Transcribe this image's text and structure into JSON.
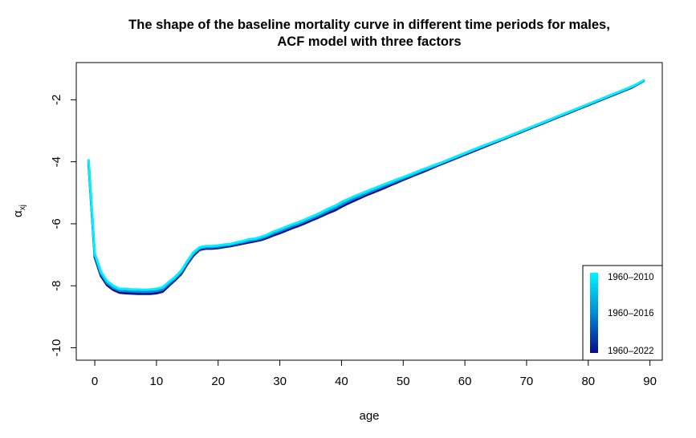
{
  "chart_data": {
    "type": "line",
    "title_line1": "The shape of the baseline mortality curve in different time periods for males,",
    "title_line2": "ACF model with three factors",
    "xlabel": "age",
    "ylabel": "α",
    "ylabel_sub": "xj",
    "xlim": [
      -3,
      92
    ],
    "ylim": [
      -10.4,
      -0.8
    ],
    "xticks": [
      0,
      10,
      20,
      30,
      40,
      50,
      60,
      70,
      80,
      90
    ],
    "yticks": [
      -10,
      -8,
      -6,
      -4,
      -2
    ],
    "x": [
      -1,
      0,
      1,
      2,
      3,
      4,
      5,
      6,
      7,
      8,
      9,
      10,
      11,
      12,
      13,
      14,
      15,
      16,
      17,
      18,
      19,
      20,
      21,
      22,
      23,
      24,
      25,
      26,
      27,
      28,
      29,
      30,
      31,
      32,
      33,
      34,
      35,
      36,
      37,
      38,
      39,
      40,
      41,
      42,
      43,
      44,
      45,
      46,
      47,
      48,
      49,
      50,
      51,
      52,
      53,
      54,
      55,
      56,
      57,
      58,
      59,
      60,
      61,
      62,
      63,
      64,
      65,
      66,
      67,
      68,
      69,
      70,
      71,
      72,
      73,
      74,
      75,
      76,
      77,
      78,
      79,
      80,
      81,
      82,
      83,
      84,
      85,
      86,
      87,
      88,
      89
    ],
    "series": [
      {
        "name": "1960–2010",
        "color": "#00f0ff",
        "values": [
          -3.95,
          -6.95,
          -7.55,
          -7.85,
          -8.0,
          -8.1,
          -8.1,
          -8.12,
          -8.12,
          -8.13,
          -8.12,
          -8.1,
          -8.05,
          -7.88,
          -7.72,
          -7.52,
          -7.2,
          -6.92,
          -6.76,
          -6.72,
          -6.72,
          -6.7,
          -6.67,
          -6.65,
          -6.6,
          -6.56,
          -6.5,
          -6.48,
          -6.42,
          -6.35,
          -6.25,
          -6.18,
          -6.1,
          -6.02,
          -5.95,
          -5.87,
          -5.78,
          -5.7,
          -5.6,
          -5.5,
          -5.42,
          -5.3,
          -5.21,
          -5.12,
          -5.04,
          -4.96,
          -4.88,
          -4.8,
          -4.72,
          -4.65,
          -4.57,
          -4.5,
          -4.42,
          -4.34,
          -4.26,
          -4.19,
          -4.11,
          -4.04,
          -3.96,
          -3.88,
          -3.8,
          -3.72,
          -3.64,
          -3.56,
          -3.48,
          -3.41,
          -3.33,
          -3.26,
          -3.18,
          -3.1,
          -3.02,
          -2.94,
          -2.86,
          -2.78,
          -2.7,
          -2.62,
          -2.54,
          -2.46,
          -2.38,
          -2.3,
          -2.22,
          -2.14,
          -2.06,
          -1.98,
          -1.9,
          -1.82,
          -1.74,
          -1.66,
          -1.58,
          -1.48,
          -1.37
        ]
      },
      {
        "name": "1960–2016",
        "color": "#0090d8",
        "values": [
          -4.0,
          -7.02,
          -7.62,
          -7.92,
          -8.07,
          -8.16,
          -8.17,
          -8.18,
          -8.19,
          -8.19,
          -8.19,
          -8.17,
          -8.12,
          -7.94,
          -7.77,
          -7.57,
          -7.25,
          -6.97,
          -6.8,
          -6.76,
          -6.76,
          -6.74,
          -6.71,
          -6.68,
          -6.64,
          -6.6,
          -6.55,
          -6.52,
          -6.47,
          -6.4,
          -6.31,
          -6.24,
          -6.16,
          -6.08,
          -6.01,
          -5.93,
          -5.84,
          -5.76,
          -5.67,
          -5.57,
          -5.49,
          -5.38,
          -5.28,
          -5.19,
          -5.11,
          -5.02,
          -4.94,
          -4.86,
          -4.78,
          -4.7,
          -4.62,
          -4.54,
          -4.46,
          -4.38,
          -4.3,
          -4.22,
          -4.14,
          -4.06,
          -3.98,
          -3.9,
          -3.82,
          -3.74,
          -3.66,
          -3.58,
          -3.5,
          -3.42,
          -3.35,
          -3.27,
          -3.19,
          -3.11,
          -3.03,
          -2.95,
          -2.87,
          -2.79,
          -2.71,
          -2.63,
          -2.55,
          -2.47,
          -2.39,
          -2.31,
          -2.23,
          -2.15,
          -2.07,
          -1.99,
          -1.91,
          -1.83,
          -1.75,
          -1.67,
          -1.59,
          -1.49,
          -1.38
        ]
      },
      {
        "name": "1960–2022",
        "color": "#0a0a90",
        "values": [
          -4.05,
          -7.08,
          -7.68,
          -7.98,
          -8.13,
          -8.22,
          -8.24,
          -8.25,
          -8.26,
          -8.26,
          -8.26,
          -8.24,
          -8.19,
          -8.0,
          -7.82,
          -7.62,
          -7.3,
          -7.02,
          -6.84,
          -6.8,
          -6.8,
          -6.78,
          -6.75,
          -6.72,
          -6.68,
          -6.64,
          -6.6,
          -6.56,
          -6.52,
          -6.45,
          -6.37,
          -6.3,
          -6.22,
          -6.14,
          -6.07,
          -5.99,
          -5.9,
          -5.82,
          -5.73,
          -5.64,
          -5.56,
          -5.45,
          -5.35,
          -5.26,
          -5.17,
          -5.08,
          -5.0,
          -4.92,
          -4.84,
          -4.75,
          -4.67,
          -4.58,
          -4.5,
          -4.42,
          -4.34,
          -4.26,
          -4.17,
          -4.09,
          -4.01,
          -3.93,
          -3.85,
          -3.77,
          -3.69,
          -3.61,
          -3.53,
          -3.45,
          -3.37,
          -3.29,
          -3.21,
          -3.13,
          -3.05,
          -2.97,
          -2.89,
          -2.81,
          -2.73,
          -2.65,
          -2.57,
          -2.49,
          -2.41,
          -2.33,
          -2.25,
          -2.17,
          -2.09,
          -2.01,
          -1.93,
          -1.85,
          -1.77,
          -1.69,
          -1.61,
          -1.5,
          -1.39
        ]
      }
    ],
    "legend": {
      "position": "bottom-right",
      "labels": [
        "1960–2010",
        "1960–2016",
        "1960–2022"
      ],
      "colors": [
        "#00f4ff",
        "#008ad4",
        "#0a0a8a"
      ]
    }
  }
}
